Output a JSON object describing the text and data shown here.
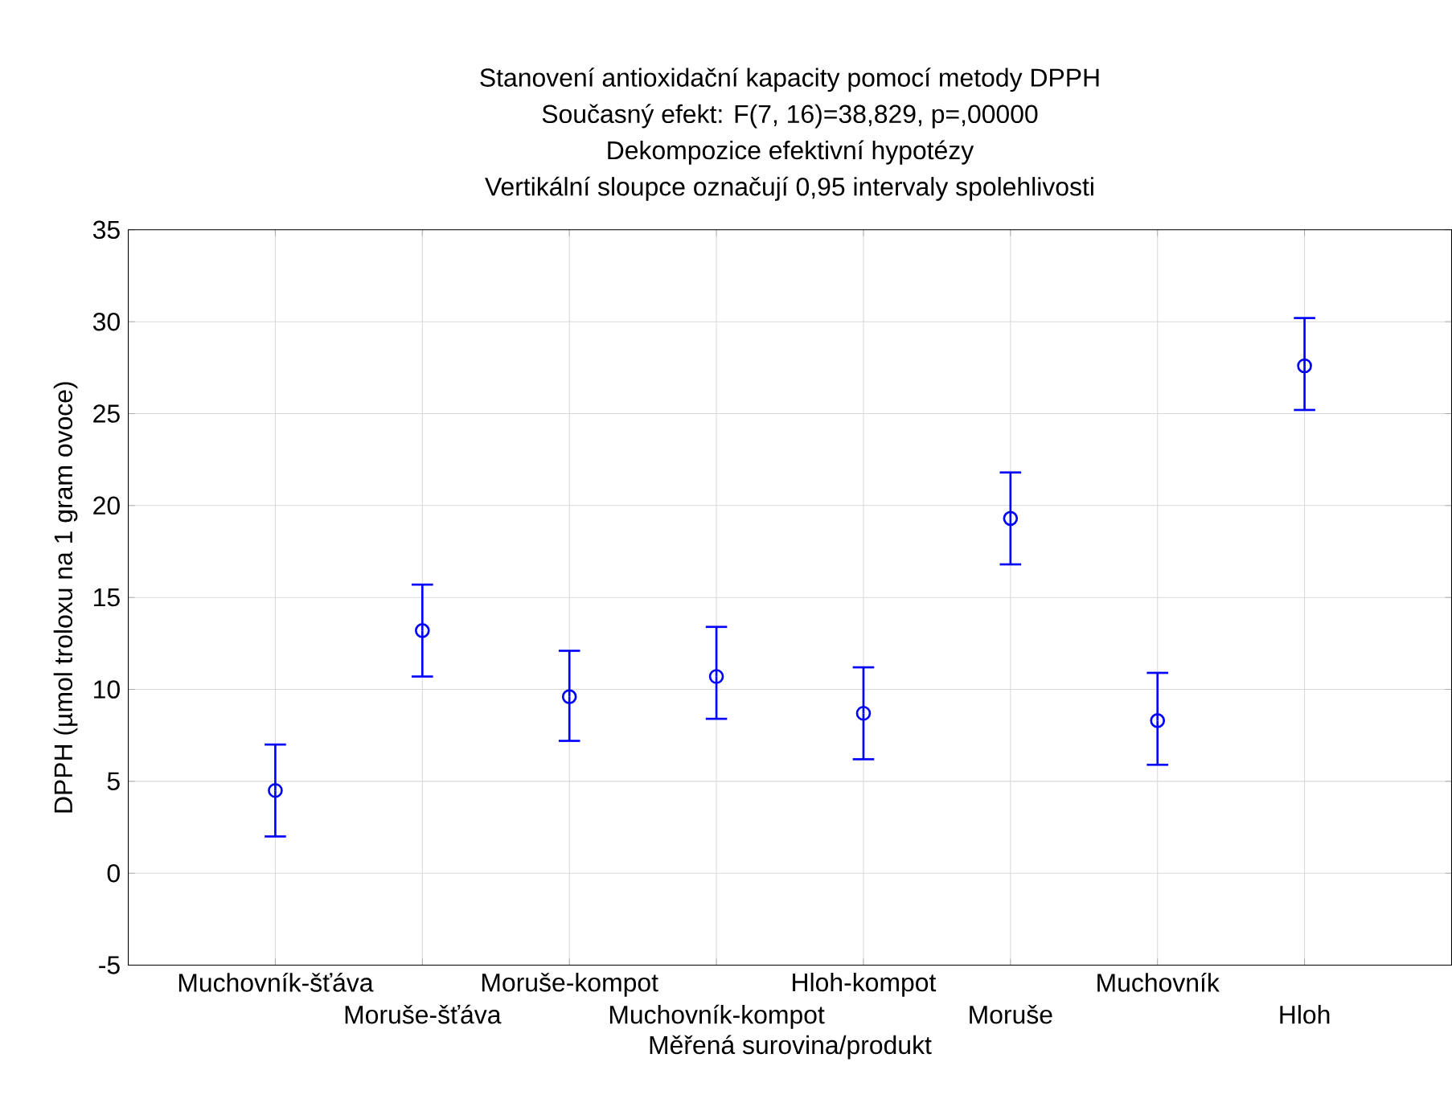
{
  "chart_data": {
    "type": "scatter",
    "title": "Stanovení antioxidační kapacity pomocí metody DPPH",
    "subtitle": "Současný efekt: F(7, 16)=38,829, p=,00000",
    "annotations": [
      "Dekompozice efektivní hypotézy",
      "Vertikální sloupce označují 0,95 intervaly spolehlivosti"
    ],
    "xlabel": "Měřená surovina/produkt",
    "ylabel": "DPPH (µmol troloxu na 1 gram ovoce)",
    "categories": [
      "Muchovník-šťáva",
      "Moruše-šťáva",
      "Moruše-kompot",
      "Muchovník-kompot",
      "Hloh-kompot",
      "Moruše",
      "Muchovník",
      "Hloh"
    ],
    "values": [
      4.5,
      13.2,
      9.6,
      10.7,
      8.7,
      19.3,
      8.3,
      27.6
    ],
    "errors": [
      [
        2.0,
        7.0
      ],
      [
        10.7,
        15.7
      ],
      [
        7.2,
        12.1
      ],
      [
        8.4,
        13.4
      ],
      [
        6.2,
        11.2
      ],
      [
        16.8,
        21.8
      ],
      [
        5.9,
        10.9
      ],
      [
        25.2,
        30.2
      ]
    ],
    "color": "#0000ff",
    "marker": "circle",
    "line_style": "none",
    "ylim": [
      -5,
      35
    ],
    "yticks": [
      -5,
      0,
      5,
      10,
      15,
      20,
      25,
      30,
      35
    ],
    "grid": true
  }
}
